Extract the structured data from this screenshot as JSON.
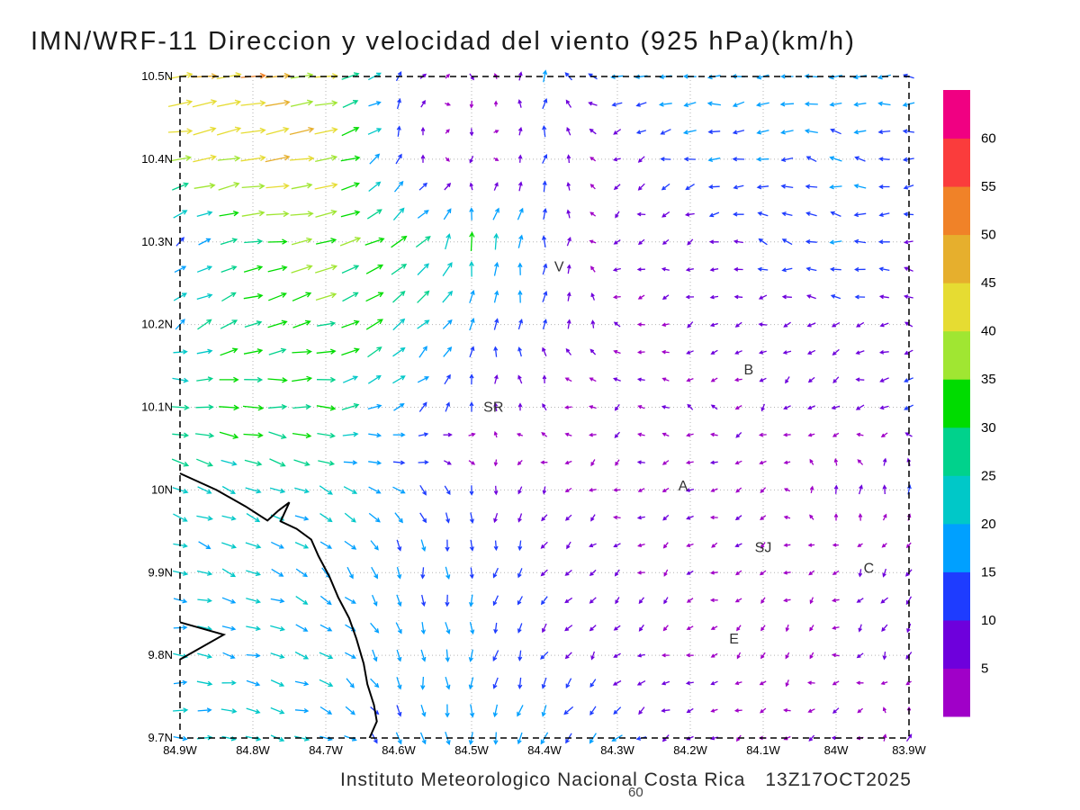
{
  "title": "IMN/WRF-11 Direccion y velocidad del viento (925 hPa)(km/h)",
  "footer": {
    "credit": "Instituto Meteorologico Nacional Costa Rica",
    "timestamp": "13Z17OCT2025",
    "stray_label": "60"
  },
  "chart_data": {
    "type": "vector_field",
    "variant": "wind_direction_speed_arrows",
    "model": "IMN/WRF-11",
    "variable": "Direccion y velocidad del viento",
    "level": "925 hPa",
    "units": "km/h",
    "valid_time": "13Z17OCT2025",
    "grid": true,
    "grid_spacing_deg": 0.1,
    "legend_position": "right",
    "x_axis": {
      "range": [
        -84.9,
        -83.9
      ],
      "ticks": [
        "84.9W",
        "84.8W",
        "84.7W",
        "84.6W",
        "84.5W",
        "84.4W",
        "84.3W",
        "84.2W",
        "84.1W",
        "84W",
        "83.9W"
      ]
    },
    "y_axis": {
      "range": [
        9.7,
        10.5
      ],
      "ticks": [
        "10.5N",
        "10.4N",
        "10.3N",
        "10.2N",
        "10.1N",
        "10N",
        "9.9N",
        "9.8N",
        "9.7N"
      ]
    },
    "colorbar": {
      "levels": [
        5,
        10,
        15,
        20,
        25,
        30,
        35,
        40,
        45,
        50,
        55,
        60
      ],
      "colors": [
        "#a000c8",
        "#6e00dc",
        "#1e3cff",
        "#00a0ff",
        "#00c8c8",
        "#00d28c",
        "#00dc00",
        "#a0e632",
        "#e6dc32",
        "#e6af2d",
        "#f08228",
        "#fa3c3c",
        "#f00082"
      ]
    },
    "stations": [
      {
        "label": "V",
        "lon": -84.38,
        "lat": 10.27
      },
      {
        "label": "B",
        "lon": -84.12,
        "lat": 10.145
      },
      {
        "label": "SR",
        "lon": -84.47,
        "lat": 10.1
      },
      {
        "label": "A",
        "lon": -84.21,
        "lat": 10.005
      },
      {
        "label": "SJ",
        "lon": -84.1,
        "lat": 9.93
      },
      {
        "label": "C",
        "lon": -83.955,
        "lat": 9.905
      },
      {
        "label": "E",
        "lon": -84.14,
        "lat": 9.82
      }
    ],
    "coastline": [
      [
        [
          -84.9,
          10.02
        ],
        [
          -84.85,
          10.0
        ],
        [
          -84.81,
          9.98
        ],
        [
          -84.78,
          9.963
        ],
        [
          -84.765,
          9.975
        ],
        [
          -84.75,
          9.985
        ],
        [
          -84.762,
          9.962
        ],
        [
          -84.74,
          9.953
        ],
        [
          -84.72,
          9.94
        ],
        [
          -84.71,
          9.92
        ],
        [
          -84.695,
          9.895
        ],
        [
          -84.683,
          9.87
        ],
        [
          -84.668,
          9.845
        ],
        [
          -84.658,
          9.82
        ],
        [
          -84.648,
          9.79
        ],
        [
          -84.643,
          9.765
        ],
        [
          -84.634,
          9.74
        ],
        [
          -84.63,
          9.72
        ],
        [
          -84.64,
          9.7
        ]
      ],
      [
        [
          -84.9,
          9.795
        ],
        [
          -84.84,
          9.825
        ],
        [
          -84.9,
          9.84
        ]
      ]
    ],
    "wind_grid": {
      "lons": [
        -84.9,
        -84.8,
        -84.7,
        -84.6,
        -84.5,
        -84.4,
        -84.3,
        -84.2,
        -84.1,
        -84.0,
        -83.9
      ],
      "lats": [
        10.5,
        10.4,
        10.3,
        10.2,
        10.1,
        10.0,
        9.9,
        9.8,
        9.7
      ],
      "u": [
        [
          45,
          50,
          40,
          5,
          0,
          0,
          -15,
          -18,
          -18,
          -18,
          -15
        ],
        [
          35,
          45,
          40,
          3,
          0,
          2,
          -5,
          -15,
          -15,
          -15,
          -12
        ],
        [
          12,
          30,
          38,
          25,
          5,
          2,
          -5,
          -6,
          -12,
          -15,
          -10
        ],
        [
          18,
          28,
          32,
          22,
          3,
          2,
          -5,
          -5,
          -6,
          -8,
          -8
        ],
        [
          30,
          32,
          30,
          15,
          3,
          -4,
          -5,
          -5,
          -4,
          -6,
          -10
        ],
        [
          22,
          22,
          18,
          15,
          2,
          -3,
          -4,
          -5,
          -4,
          2,
          2
        ],
        [
          20,
          20,
          15,
          5,
          0,
          -5,
          -5,
          -4,
          -4,
          -3,
          -5
        ],
        [
          20,
          20,
          18,
          3,
          0,
          -6,
          -5,
          -4,
          -3,
          -4,
          -3
        ],
        [
          22,
          22,
          18,
          5,
          0,
          -8,
          -12,
          -5,
          -4,
          -6,
          2
        ]
      ],
      "v": [
        [
          5,
          8,
          5,
          10,
          -5,
          15,
          0,
          0,
          -3,
          0,
          0
        ],
        [
          8,
          10,
          8,
          12,
          -6,
          12,
          -3,
          -3,
          0,
          3,
          0
        ],
        [
          10,
          5,
          5,
          15,
          28,
          15,
          -3,
          -2,
          4,
          2,
          0
        ],
        [
          12,
          12,
          10,
          15,
          15,
          12,
          2,
          -3,
          -2,
          -2,
          2
        ],
        [
          -5,
          -3,
          0,
          10,
          10,
          3,
          -2,
          2,
          -3,
          -4,
          -5
        ],
        [
          -8,
          -8,
          -10,
          -10,
          -10,
          -5,
          -2,
          -2,
          -2,
          8,
          10
        ],
        [
          -5,
          -8,
          -12,
          -15,
          -15,
          -8,
          -3,
          -3,
          -2,
          -3,
          -8
        ],
        [
          -3,
          -5,
          -8,
          -15,
          -15,
          -10,
          -3,
          -2,
          -3,
          -2,
          -8
        ],
        [
          0,
          -3,
          -6,
          -15,
          -18,
          -15,
          -8,
          -3,
          -2,
          -2,
          8
        ]
      ]
    }
  }
}
